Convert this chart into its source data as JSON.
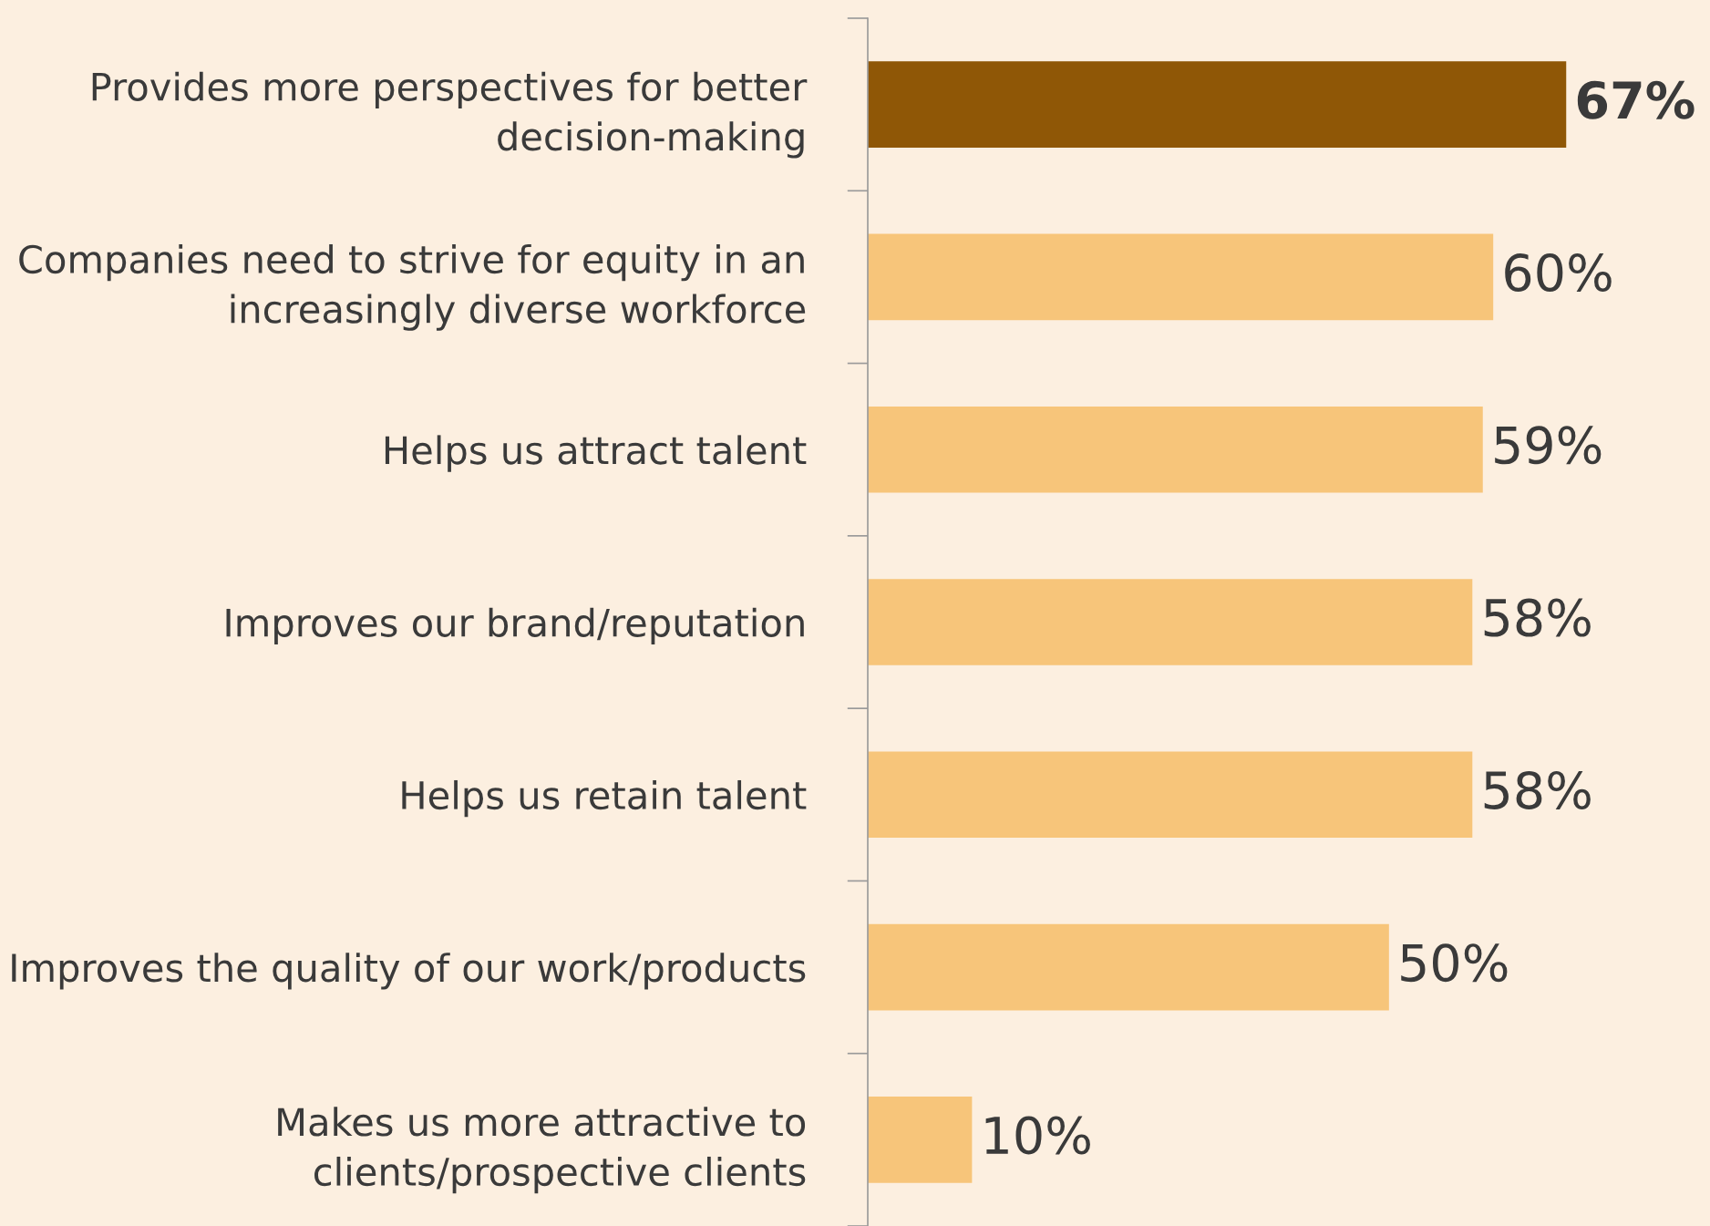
{
  "chart_data": {
    "type": "bar",
    "orientation": "horizontal",
    "categories": [
      "Provides more perspectives for better\ndecision-making",
      "Companies need to strive for equity in an\nincreasingly diverse workforce",
      "Helps us attract talent",
      "Improves our brand/reputation",
      "Helps us retain talent",
      "Improves the quality of our work/products",
      "Makes us more attractive to\nclients/prospective clients"
    ],
    "values": [
      67,
      60,
      59,
      58,
      58,
      50,
      10
    ],
    "colors": [
      "#8f5706",
      "#f7c57a",
      "#f7c57a",
      "#f7c57a",
      "#f7c57a",
      "#f7c57a",
      "#f7c57a"
    ],
    "value_labels": [
      "67%",
      "60%",
      "59%",
      "58%",
      "58%",
      "50%",
      "10%"
    ],
    "grid": false,
    "legend": false
  }
}
